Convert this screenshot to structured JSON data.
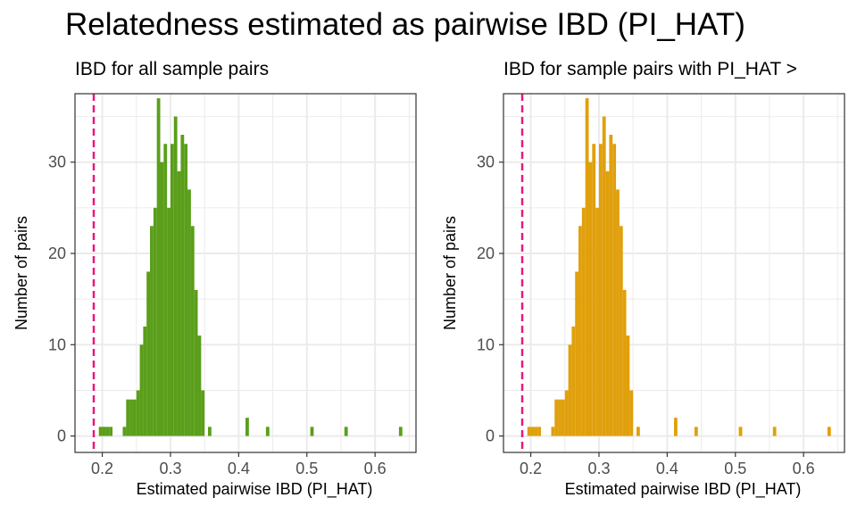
{
  "title": "Relatedness estimated as pairwise IBD (PI_HAT)",
  "colors": {
    "panel_left_fill": "#5a9e1a",
    "panel_right_fill": "#e0a00c",
    "threshold_line": "#e6197e",
    "grid": "#ebebeb",
    "panel_border": "#333333"
  },
  "chart_data": [
    {
      "type": "bar",
      "subtitle": "IBD for all sample pairs",
      "xlabel": "Estimated pairwise IBD (PI_HAT)",
      "ylabel": "Number of pairs",
      "x_ticks": [
        0.2,
        0.3,
        0.4,
        0.5,
        0.6
      ],
      "y_ticks": [
        0,
        10,
        20,
        30
      ],
      "xlim": [
        0.16,
        0.66
      ],
      "ylim": [
        -1.8,
        37.5
      ],
      "bin_width": 0.005,
      "threshold": 0.1875,
      "bins": [
        [
          0.195,
          1
        ],
        [
          0.2,
          1
        ],
        [
          0.205,
          1
        ],
        [
          0.21,
          1
        ],
        [
          0.23,
          1
        ],
        [
          0.235,
          4
        ],
        [
          0.24,
          4
        ],
        [
          0.245,
          4
        ],
        [
          0.25,
          5
        ],
        [
          0.255,
          10
        ],
        [
          0.26,
          12
        ],
        [
          0.265,
          18
        ],
        [
          0.27,
          23
        ],
        [
          0.275,
          25
        ],
        [
          0.28,
          37
        ],
        [
          0.285,
          30
        ],
        [
          0.29,
          32
        ],
        [
          0.295,
          25
        ],
        [
          0.3,
          32
        ],
        [
          0.305,
          35
        ],
        [
          0.31,
          29
        ],
        [
          0.315,
          33
        ],
        [
          0.32,
          32
        ],
        [
          0.325,
          27
        ],
        [
          0.33,
          23
        ],
        [
          0.335,
          16
        ],
        [
          0.34,
          11
        ],
        [
          0.345,
          5
        ],
        [
          0.355,
          1
        ],
        [
          0.41,
          2
        ],
        [
          0.44,
          1
        ],
        [
          0.505,
          1
        ],
        [
          0.555,
          1
        ],
        [
          0.635,
          1
        ]
      ]
    },
    {
      "type": "bar",
      "subtitle": "IBD for sample pairs with PI_HAT >",
      "xlabel": "Estimated pairwise IBD (PI_HAT)",
      "ylabel": "Number of pairs",
      "x_ticks": [
        0.2,
        0.3,
        0.4,
        0.5,
        0.6
      ],
      "y_ticks": [
        0,
        10,
        20,
        30
      ],
      "xlim": [
        0.16,
        0.66
      ],
      "ylim": [
        -1.8,
        37.5
      ],
      "bin_width": 0.005,
      "threshold": 0.1875,
      "bins": [
        [
          0.195,
          1
        ],
        [
          0.2,
          1
        ],
        [
          0.205,
          1
        ],
        [
          0.21,
          1
        ],
        [
          0.23,
          1
        ],
        [
          0.235,
          4
        ],
        [
          0.24,
          4
        ],
        [
          0.245,
          4
        ],
        [
          0.25,
          5
        ],
        [
          0.255,
          10
        ],
        [
          0.26,
          12
        ],
        [
          0.265,
          18
        ],
        [
          0.27,
          23
        ],
        [
          0.275,
          25
        ],
        [
          0.28,
          37
        ],
        [
          0.285,
          30
        ],
        [
          0.29,
          32
        ],
        [
          0.295,
          25
        ],
        [
          0.3,
          32
        ],
        [
          0.305,
          35
        ],
        [
          0.31,
          29
        ],
        [
          0.315,
          33
        ],
        [
          0.32,
          32
        ],
        [
          0.325,
          27
        ],
        [
          0.33,
          23
        ],
        [
          0.335,
          16
        ],
        [
          0.34,
          11
        ],
        [
          0.345,
          5
        ],
        [
          0.355,
          1
        ],
        [
          0.41,
          2
        ],
        [
          0.44,
          1
        ],
        [
          0.505,
          1
        ],
        [
          0.555,
          1
        ],
        [
          0.635,
          1
        ]
      ]
    }
  ]
}
